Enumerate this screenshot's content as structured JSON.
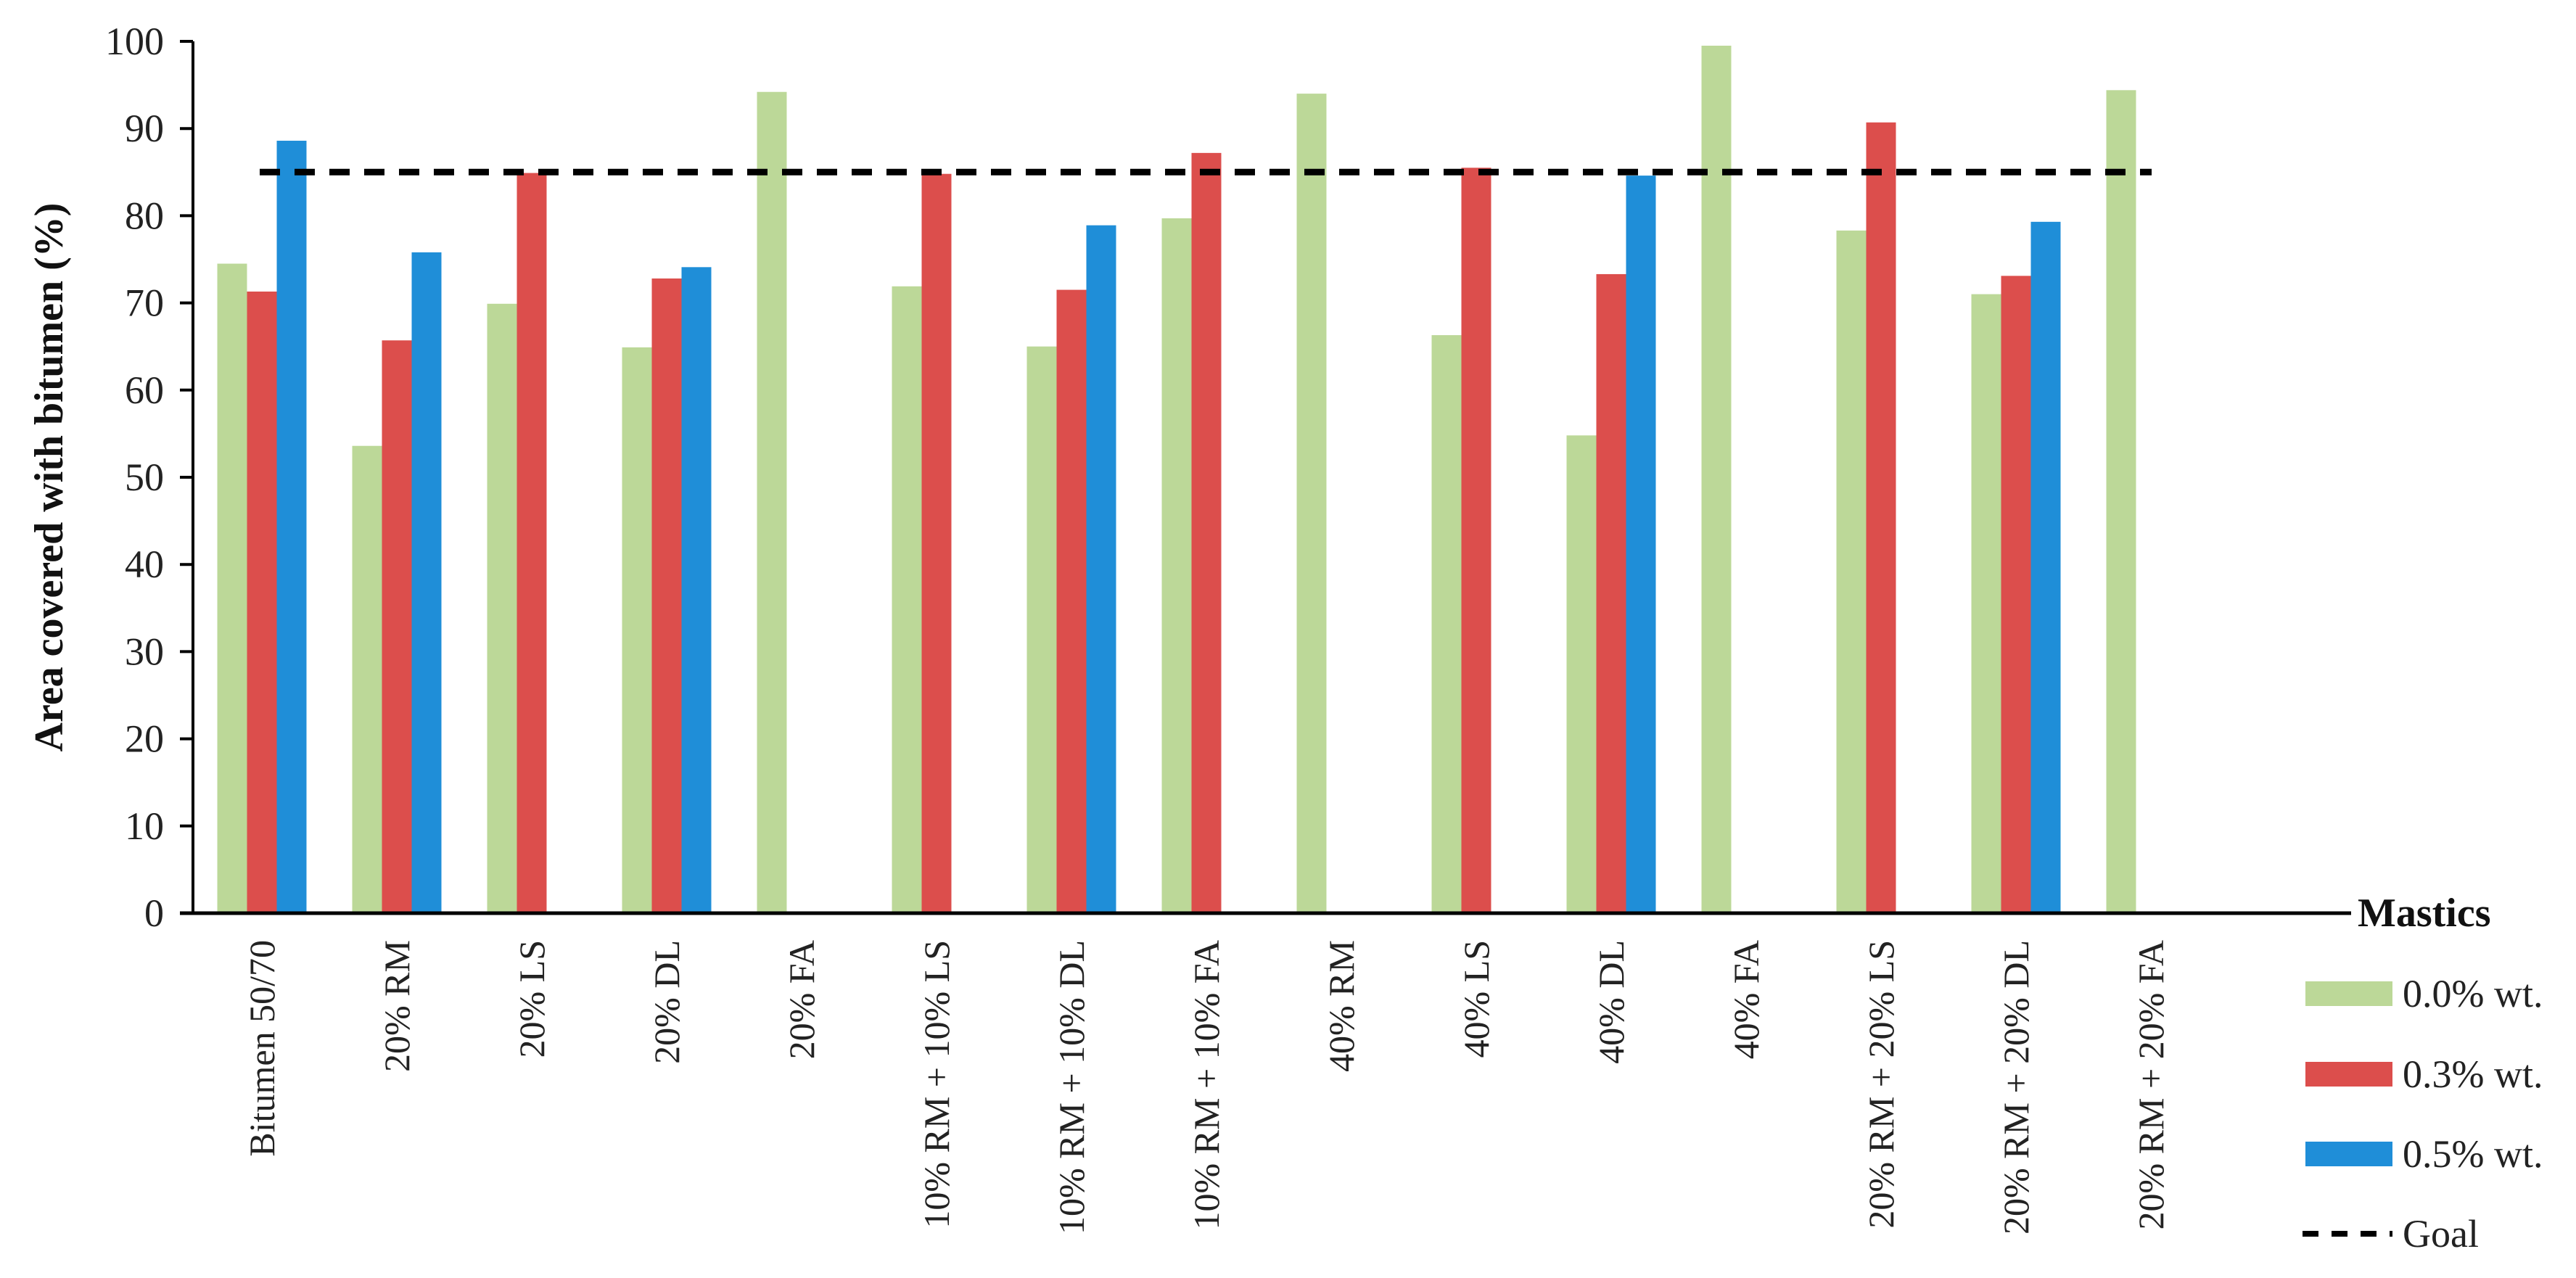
{
  "chart_data": {
    "type": "bar",
    "title": "",
    "xlabel": "",
    "ylabel": "Area covered with bitumen (%)",
    "ylim": [
      0,
      100
    ],
    "yticks": [
      0,
      10,
      20,
      30,
      40,
      50,
      60,
      70,
      80,
      90,
      100
    ],
    "grid": false,
    "legend": {
      "title": "Mastics",
      "placement": "right"
    },
    "categories": [
      "Bitumen 50/70",
      "20% RM",
      "20% LS",
      "20% DL",
      "20% FA",
      "10% RM + 10% LS",
      "10% RM + 10% DL",
      "10% RM + 10% FA",
      "40% RM",
      "40% LS",
      "40% DL",
      "40% FA",
      "20% RM + 20% LS",
      "20% RM + 20% DL",
      "20% RM + 20% FA"
    ],
    "series": [
      {
        "name": "0.0% wt.",
        "color": "#bcd898",
        "values": [
          74.5,
          53.6,
          69.9,
          64.9,
          94.2,
          71.9,
          65.0,
          79.7,
          94.0,
          66.3,
          54.8,
          99.5,
          78.3,
          71.0,
          94.4
        ]
      },
      {
        "name": "0.3% wt.",
        "color": "#dc4e4c",
        "values": [
          71.3,
          65.7,
          84.9,
          72.8,
          null,
          84.8,
          71.5,
          87.2,
          null,
          85.5,
          73.3,
          null,
          90.7,
          73.1,
          null
        ]
      },
      {
        "name": "0.5% wt.",
        "color": "#1f8ed8",
        "values": [
          88.6,
          75.8,
          null,
          74.1,
          null,
          null,
          78.9,
          null,
          null,
          null,
          84.6,
          null,
          null,
          79.3,
          null
        ]
      }
    ],
    "reference_line": {
      "name": "Goal",
      "value": 85,
      "style": "dashed",
      "color": "#000000"
    }
  }
}
